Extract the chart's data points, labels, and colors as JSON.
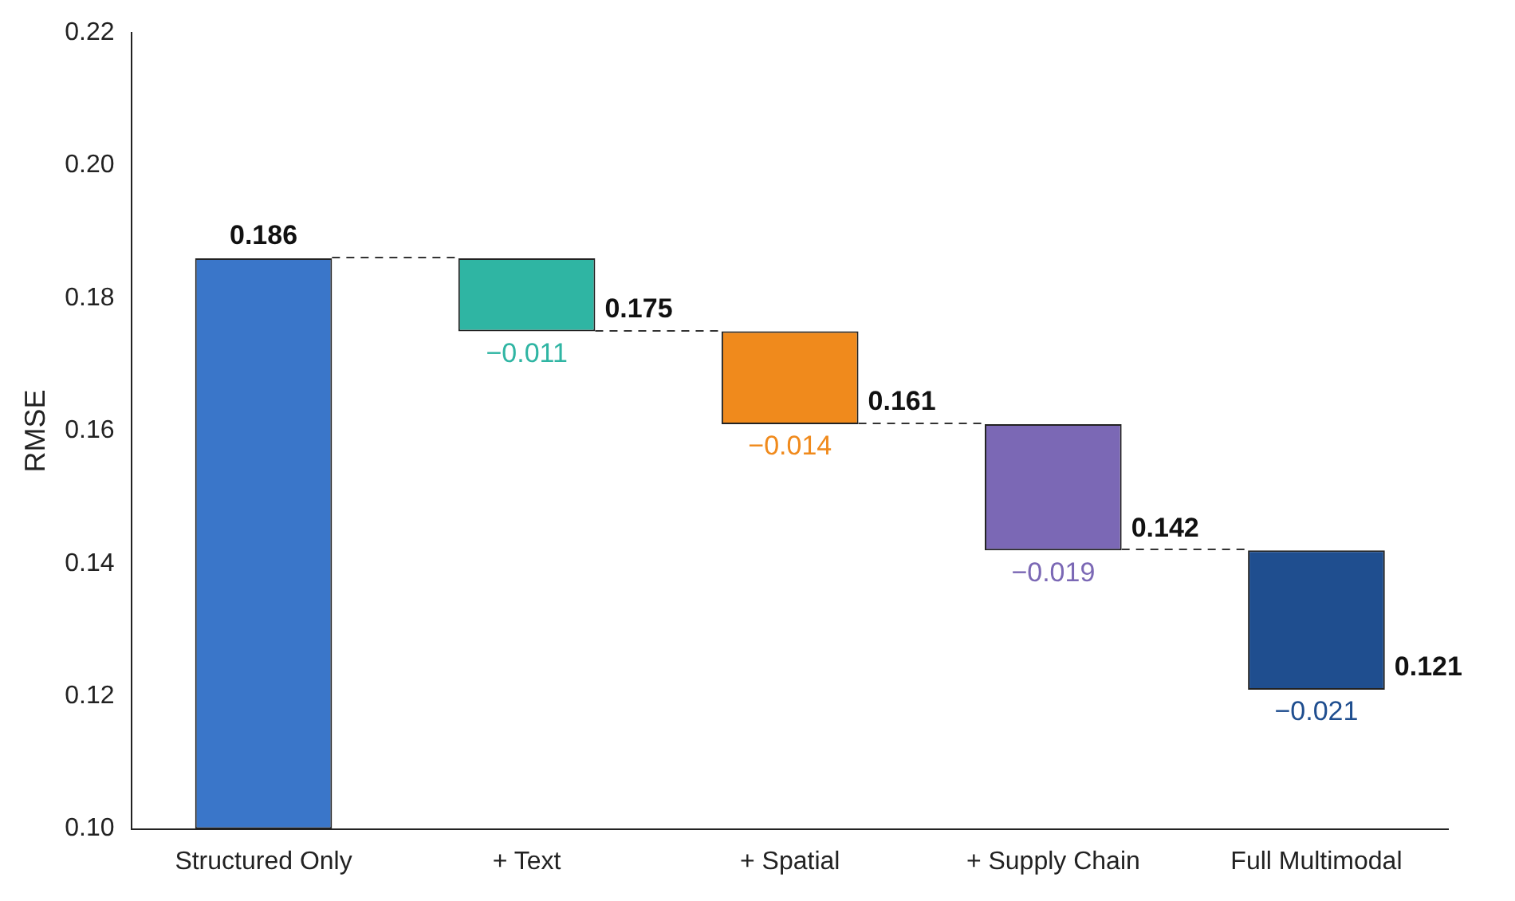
{
  "chart_data": {
    "type": "bar",
    "ylabel": "RMSE",
    "categories": [
      "Structured Only",
      "+ Text",
      "+ Spatial",
      "+ Supply Chain",
      "Full Multimodal"
    ],
    "base": [
      null,
      0.186,
      0.175,
      0.161,
      0.142
    ],
    "values": [
      0.186,
      -0.011,
      -0.014,
      -0.019,
      -0.021
    ],
    "colors": [
      "#3a76c9",
      "#2fb5a3",
      "#f08a1c",
      "#7b68b5",
      "#1f4e8f"
    ],
    "value_labels": [
      null,
      "−0.011",
      "−0.014",
      "−0.019",
      "−0.021"
    ],
    "annotations": [
      {
        "text": "0.186",
        "x": "Structured Only",
        "y": 0.186
      },
      {
        "text": "0.175",
        "x": "+ Text",
        "y": 0.175
      },
      {
        "text": "0.161",
        "x": "+ Spatial",
        "y": 0.161
      },
      {
        "text": "0.142",
        "x": "+ Supply Chain",
        "y": 0.142
      },
      {
        "text": "0.121",
        "x": "Full Multimodal",
        "y": 0.121
      }
    ],
    "ylim": [
      0.1,
      0.22
    ],
    "yticks": [
      {
        "value": 0.1,
        "label": "0.10"
      },
      {
        "value": 0.12,
        "label": "0.12"
      },
      {
        "value": 0.14,
        "label": "0.14"
      },
      {
        "value": 0.16,
        "label": "0.16"
      },
      {
        "value": 0.18,
        "label": "0.18"
      },
      {
        "value": 0.2,
        "label": "0.20"
      },
      {
        "value": 0.22,
        "label": "0.22"
      }
    ],
    "grid": false,
    "legend": false
  }
}
